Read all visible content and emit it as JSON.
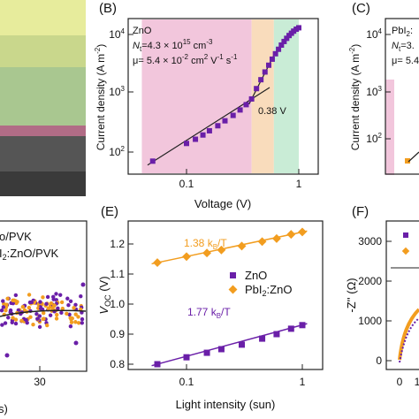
{
  "panels": {
    "B": {
      "letter": "(B)",
      "material": "ZnO",
      "nt_line": "N_t=4.3 × 10^15 cm^-3",
      "mu_line": "μ= 5.4 × 10^-2 cm^2 V^-1 s^-1",
      "annotation": "0.38 V",
      "xlabel": "Voltage (V)",
      "ylabel": "Current density (A m^-2)",
      "xticks": [
        "0.1",
        "1"
      ],
      "yticks": [
        "10^2",
        "10^3",
        "10^4"
      ]
    },
    "C": {
      "letter": "(C)",
      "material": "PbI2:",
      "nt_line": "N_t=3.",
      "mu_line": "μ= 5.4",
      "ylabel": "Current density (A m^-2)",
      "yticks": [
        "10^2",
        "10^3",
        "10^4"
      ]
    },
    "E": {
      "letter": "(E)",
      "ylabel": "V_OC (V)",
      "xlabel": "Light intensity (sun)",
      "yticks": [
        "0.8",
        "0.9",
        "1.0",
        "1.1",
        "1.2"
      ],
      "xticks": [
        "0.1",
        "1"
      ],
      "legend": [
        "ZnO",
        "PbI2:ZnO"
      ],
      "slope_top": "1.38 k_B/T",
      "slope_bottom": "1.77 k_B/T"
    },
    "F": {
      "letter": "(F)",
      "ylabel": "-Z'' (Ω)",
      "yticks": [
        "0",
        "1000",
        "2000",
        "3000"
      ],
      "xticks": [
        "0",
        "1"
      ]
    },
    "D": {
      "legend_line1": "/PVK",
      "legend_line2": "I2:ZnO/PVK",
      "xtick": "30",
      "xlabel_fragment": "s)"
    }
  },
  "colors": {
    "zno": "#6a1fa8",
    "pbi2_zno": "#f29d1f",
    "region_pink": "#f2c6dc",
    "region_orange": "#f9dcbc",
    "region_green": "#c9ecd6"
  },
  "chart_data": [
    {
      "type": "scatter",
      "panel": "B",
      "xscale": "log",
      "yscale": "log",
      "xlim": [
        0.04,
        1.5
      ],
      "ylim": [
        50,
        20000
      ],
      "series": [
        {
          "name": "ZnO",
          "x": [
            0.05,
            0.1,
            0.12,
            0.14,
            0.16,
            0.19,
            0.22,
            0.26,
            0.3,
            0.34,
            0.38,
            0.42,
            0.46,
            0.5,
            0.54,
            0.58,
            0.62,
            0.66,
            0.7,
            0.74,
            0.78,
            0.82,
            0.86,
            0.9,
            0.95,
            1.0
          ],
          "y": [
            70,
            140,
            165,
            195,
            230,
            280,
            340,
            420,
            520,
            640,
            800,
            1200,
            1700,
            2300,
            3000,
            3800,
            4700,
            5600,
            6600,
            7600,
            8600,
            9600,
            10500,
            11400,
            12300,
            13000
          ]
        }
      ],
      "regions": [
        [
          0.04,
          0.38
        ],
        [
          0.38,
          0.6
        ],
        [
          0.6,
          1.0
        ]
      ]
    },
    {
      "type": "scatter",
      "panel": "E",
      "xscale": "log",
      "xlim": [
        0.04,
        1.3
      ],
      "ylim": [
        0.77,
        1.27
      ],
      "series": [
        {
          "name": "ZnO",
          "x": [
            0.056,
            0.1,
            0.15,
            0.2,
            0.3,
            0.45,
            0.6,
            0.8,
            1.0
          ],
          "y": [
            0.8,
            0.823,
            0.838,
            0.85,
            0.865,
            0.885,
            0.9,
            0.918,
            0.93
          ]
        },
        {
          "name": "PbI2:ZnO",
          "x": [
            0.056,
            0.1,
            0.15,
            0.2,
            0.3,
            0.45,
            0.6,
            0.8,
            1.0
          ],
          "y": [
            1.138,
            1.158,
            1.17,
            1.18,
            1.193,
            1.208,
            1.218,
            1.232,
            1.24
          ]
        }
      ]
    }
  ]
}
